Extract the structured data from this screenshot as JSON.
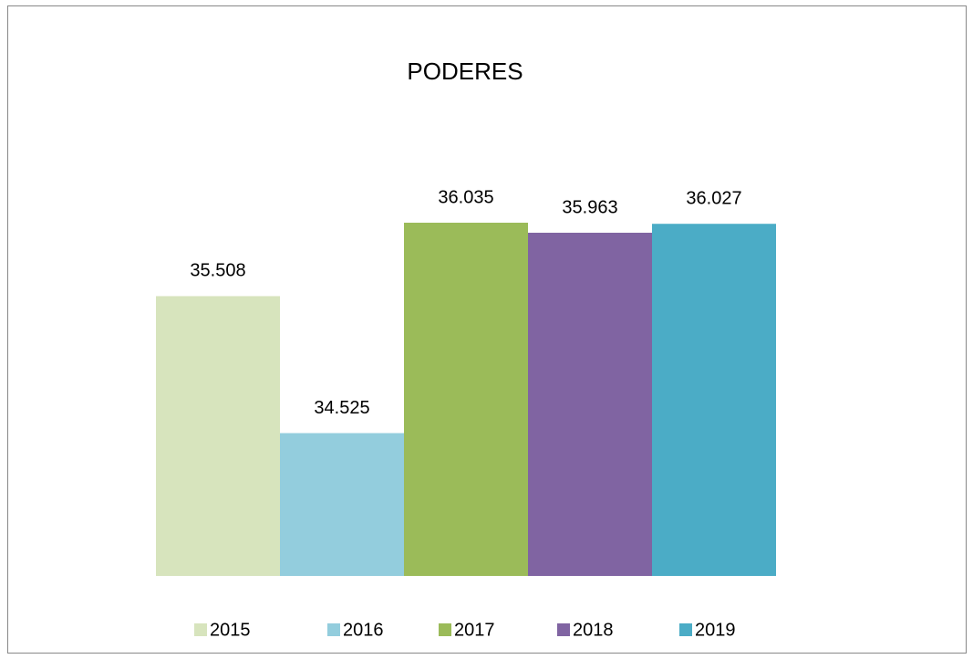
{
  "chart_data": {
    "type": "bar",
    "title": "PODERES",
    "categories": [
      null
    ],
    "series": [
      {
        "name": "2015",
        "color": "#d7e4bd",
        "values": [
          35.508
        ]
      },
      {
        "name": "2016",
        "color": "#93cddd",
        "values": [
          34.525
        ]
      },
      {
        "name": "2017",
        "color": "#9bbb59",
        "values": [
          36.035
        ]
      },
      {
        "name": "2018",
        "color": "#8064a2",
        "values": [
          35.963
        ]
      },
      {
        "name": "2019",
        "color": "#4bacc6",
        "values": [
          36.027
        ]
      }
    ],
    "ylim": [
      33.5,
      36.5
    ],
    "legend": "bottom"
  }
}
